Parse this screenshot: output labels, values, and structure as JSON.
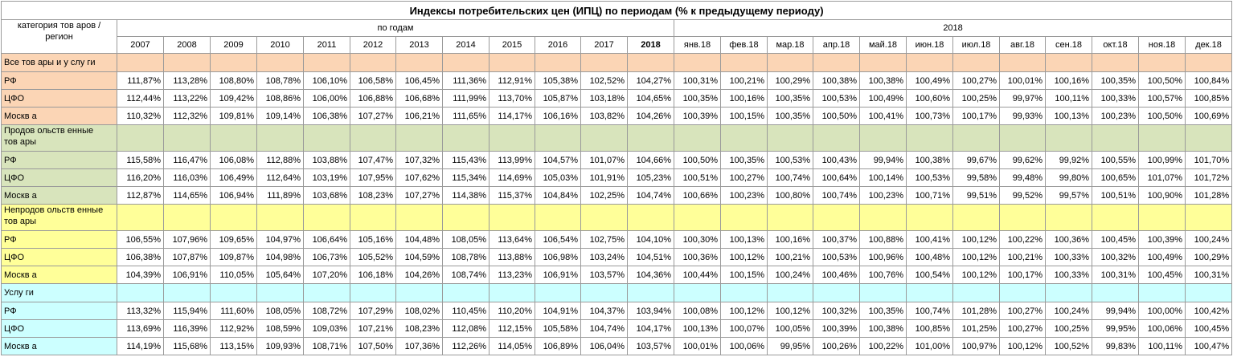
{
  "title": "Индексы потребительских цен (ИПЦ) по периодам (% к предыдущему периоду)",
  "header": {
    "corner_label": "категория тов аров /\nрегион",
    "by_years_label": "по годам",
    "year_2018_label": "2018",
    "columns": [
      "2007",
      "2008",
      "2009",
      "2010",
      "2011",
      "2012",
      "2013",
      "2014",
      "2015",
      "2016",
      "2017",
      "2018",
      "янв.18",
      "фев.18",
      "мар.18",
      "апр.18",
      "май.18",
      "июн.18",
      "июл.18",
      "авг.18",
      "сен.18",
      "окт.18",
      "ноя.18",
      "дек.18"
    ]
  },
  "colors": {
    "all": "#fbd5b5",
    "food": "#d8e4bc",
    "nonfood": "#ffff99",
    "services": "#ccffff"
  },
  "groups": [
    {
      "name": "Все тов ары и у слу ги",
      "color_key": "all",
      "rows": [
        {
          "region": "РФ",
          "values": [
            "111,87%",
            "113,28%",
            "108,80%",
            "108,78%",
            "106,10%",
            "106,58%",
            "106,45%",
            "111,36%",
            "112,91%",
            "105,38%",
            "102,52%",
            "104,27%",
            "100,31%",
            "100,21%",
            "100,29%",
            "100,38%",
            "100,38%",
            "100,49%",
            "100,27%",
            "100,01%",
            "100,16%",
            "100,35%",
            "100,50%",
            "100,84%"
          ]
        },
        {
          "region": "ЦФО",
          "values": [
            "112,44%",
            "113,22%",
            "109,42%",
            "108,86%",
            "106,00%",
            "106,88%",
            "106,68%",
            "111,99%",
            "113,70%",
            "105,87%",
            "103,18%",
            "104,65%",
            "100,35%",
            "100,16%",
            "100,35%",
            "100,53%",
            "100,49%",
            "100,60%",
            "100,25%",
            "99,97%",
            "100,11%",
            "100,33%",
            "100,57%",
            "100,85%"
          ]
        },
        {
          "region": "Москв а",
          "values": [
            "110,32%",
            "112,32%",
            "109,81%",
            "109,14%",
            "106,38%",
            "107,27%",
            "106,21%",
            "111,65%",
            "114,17%",
            "106,16%",
            "103,82%",
            "104,26%",
            "100,39%",
            "100,15%",
            "100,35%",
            "100,50%",
            "100,41%",
            "100,73%",
            "100,17%",
            "99,93%",
            "100,13%",
            "100,23%",
            "100,50%",
            "100,69%"
          ]
        }
      ]
    },
    {
      "name": "Продов ольств енные\nтов ары",
      "color_key": "food",
      "rows": [
        {
          "region": "РФ",
          "values": [
            "115,58%",
            "116,47%",
            "106,08%",
            "112,88%",
            "103,88%",
            "107,47%",
            "107,32%",
            "115,43%",
            "113,99%",
            "104,57%",
            "101,07%",
            "104,66%",
            "100,50%",
            "100,35%",
            "100,53%",
            "100,43%",
            "99,94%",
            "100,38%",
            "99,67%",
            "99,62%",
            "99,92%",
            "100,55%",
            "100,99%",
            "101,70%"
          ]
        },
        {
          "region": "ЦФО",
          "values": [
            "116,20%",
            "116,03%",
            "106,49%",
            "112,64%",
            "103,19%",
            "107,95%",
            "107,62%",
            "115,34%",
            "114,69%",
            "105,03%",
            "101,91%",
            "105,23%",
            "100,51%",
            "100,27%",
            "100,74%",
            "100,64%",
            "100,14%",
            "100,53%",
            "99,58%",
            "99,48%",
            "99,80%",
            "100,65%",
            "101,07%",
            "101,72%"
          ]
        },
        {
          "region": "Москв а",
          "values": [
            "112,87%",
            "114,65%",
            "106,94%",
            "111,89%",
            "103,68%",
            "108,23%",
            "107,27%",
            "114,38%",
            "115,37%",
            "104,84%",
            "102,25%",
            "104,74%",
            "100,66%",
            "100,23%",
            "100,80%",
            "100,74%",
            "100,23%",
            "100,71%",
            "99,51%",
            "99,52%",
            "99,57%",
            "100,51%",
            "100,90%",
            "101,28%"
          ]
        }
      ]
    },
    {
      "name": "Непродов ольств енные\nтов ары",
      "color_key": "nonfood",
      "rows": [
        {
          "region": "РФ",
          "values": [
            "106,55%",
            "107,96%",
            "109,65%",
            "104,97%",
            "106,64%",
            "105,16%",
            "104,48%",
            "108,05%",
            "113,64%",
            "106,54%",
            "102,75%",
            "104,10%",
            "100,30%",
            "100,13%",
            "100,16%",
            "100,37%",
            "100,88%",
            "100,41%",
            "100,12%",
            "100,22%",
            "100,36%",
            "100,45%",
            "100,39%",
            "100,24%"
          ]
        },
        {
          "region": "ЦФО",
          "values": [
            "106,38%",
            "107,87%",
            "109,87%",
            "104,98%",
            "106,73%",
            "105,52%",
            "104,59%",
            "108,78%",
            "113,88%",
            "106,98%",
            "103,24%",
            "104,51%",
            "100,36%",
            "100,12%",
            "100,21%",
            "100,53%",
            "100,96%",
            "100,48%",
            "100,12%",
            "100,21%",
            "100,33%",
            "100,32%",
            "100,49%",
            "100,29%"
          ]
        },
        {
          "region": "Москв а",
          "values": [
            "104,39%",
            "106,91%",
            "110,05%",
            "105,64%",
            "107,20%",
            "106,18%",
            "104,26%",
            "108,74%",
            "113,23%",
            "106,91%",
            "103,57%",
            "104,36%",
            "100,44%",
            "100,15%",
            "100,24%",
            "100,46%",
            "100,76%",
            "100,54%",
            "100,12%",
            "100,17%",
            "100,33%",
            "100,31%",
            "100,45%",
            "100,31%"
          ]
        }
      ]
    },
    {
      "name": "Услу ги",
      "color_key": "services",
      "rows": [
        {
          "region": "РФ",
          "values": [
            "113,32%",
            "115,94%",
            "111,60%",
            "108,05%",
            "108,72%",
            "107,29%",
            "108,02%",
            "110,45%",
            "110,20%",
            "104,91%",
            "104,37%",
            "103,94%",
            "100,08%",
            "100,12%",
            "100,12%",
            "100,32%",
            "100,35%",
            "100,74%",
            "101,28%",
            "100,27%",
            "100,24%",
            "99,94%",
            "100,00%",
            "100,42%"
          ]
        },
        {
          "region": "ЦФО",
          "values": [
            "113,69%",
            "116,39%",
            "112,92%",
            "108,59%",
            "109,03%",
            "107,21%",
            "108,23%",
            "112,08%",
            "112,15%",
            "105,58%",
            "104,74%",
            "104,17%",
            "100,13%",
            "100,07%",
            "100,05%",
            "100,39%",
            "100,38%",
            "100,85%",
            "101,25%",
            "100,27%",
            "100,25%",
            "99,95%",
            "100,06%",
            "100,45%"
          ]
        },
        {
          "region": "Москв а",
          "values": [
            "114,19%",
            "115,68%",
            "113,15%",
            "109,93%",
            "108,71%",
            "107,50%",
            "107,36%",
            "112,26%",
            "114,05%",
            "106,89%",
            "106,04%",
            "103,57%",
            "100,01%",
            "100,06%",
            "99,95%",
            "100,26%",
            "100,22%",
            "101,00%",
            "100,97%",
            "100,12%",
            "100,52%",
            "99,83%",
            "100,11%",
            "100,47%"
          ]
        }
      ]
    }
  ]
}
